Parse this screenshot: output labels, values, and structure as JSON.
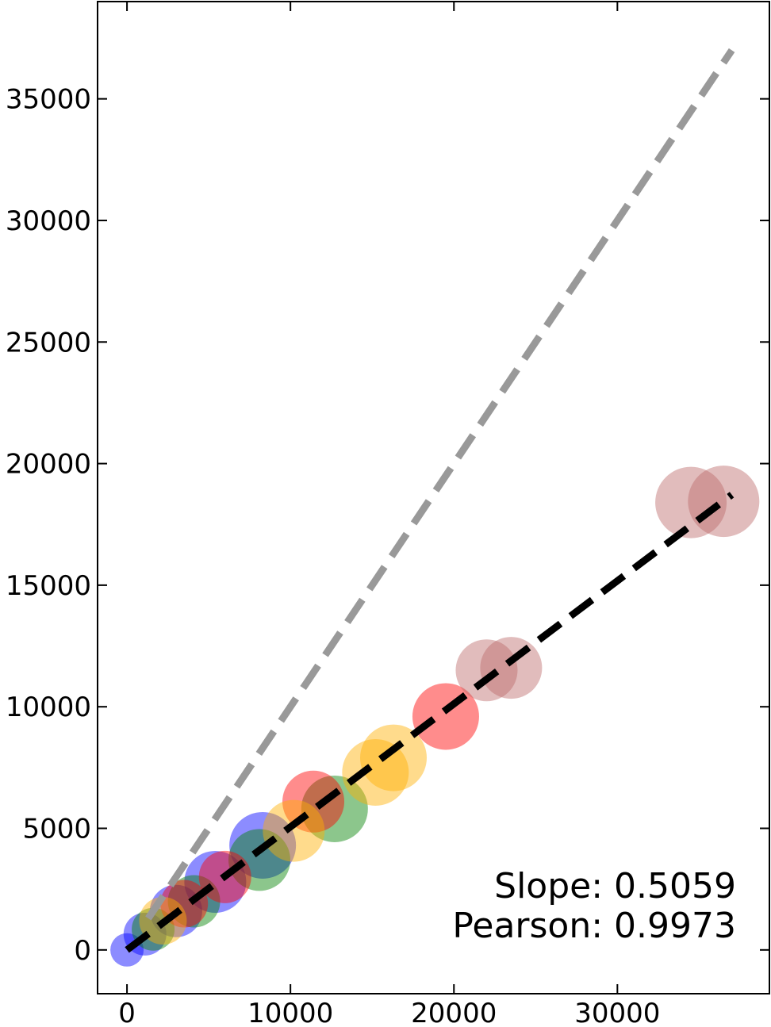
{
  "chart_data": {
    "type": "scatter",
    "title": "",
    "xlabel": "",
    "ylabel": "",
    "xlim": [
      -1800,
      39300
    ],
    "ylim": [
      -1800,
      39000
    ],
    "x_ticks": [
      0,
      10000,
      20000,
      30000
    ],
    "y_ticks": [
      0,
      5000,
      10000,
      15000,
      20000,
      25000,
      30000,
      35000
    ],
    "grid": false,
    "annotations": [
      "Slope: 0.5059",
      "Pearson: 0.9973"
    ],
    "reference_lines": [
      {
        "kind": "identity",
        "style": "dashed",
        "color": "#999999",
        "x": [
          1300,
          37000
        ],
        "y": [
          1300,
          37000
        ]
      },
      {
        "kind": "fit",
        "style": "dashed",
        "color": "#000000",
        "x": [
          0,
          37000
        ],
        "y": [
          0,
          18720
        ]
      }
    ],
    "series": [
      {
        "color": "#0000ff",
        "points": [
          {
            "x": 0,
            "y": 0,
            "size": 0.3
          },
          {
            "x": 1100,
            "y": 650,
            "size": 0.5
          },
          {
            "x": 3000,
            "y": 1600,
            "size": 0.7
          },
          {
            "x": 5400,
            "y": 2800,
            "size": 0.9
          },
          {
            "x": 8300,
            "y": 4300,
            "size": 1.0
          }
        ]
      },
      {
        "color": "#008000",
        "points": [
          {
            "x": 1600,
            "y": 850,
            "size": 0.5
          },
          {
            "x": 4100,
            "y": 2000,
            "size": 0.7
          },
          {
            "x": 8100,
            "y": 3700,
            "size": 0.9
          },
          {
            "x": 12700,
            "y": 5800,
            "size": 1.0
          }
        ]
      },
      {
        "color": "#ff0000",
        "points": [
          {
            "x": 3500,
            "y": 1900,
            "size": 0.6
          },
          {
            "x": 6000,
            "y": 3000,
            "size": 0.7
          },
          {
            "x": 11400,
            "y": 6100,
            "size": 0.9
          },
          {
            "x": 19500,
            "y": 9600,
            "size": 1.0
          }
        ]
      },
      {
        "color": "#ffb000",
        "points": [
          {
            "x": 2200,
            "y": 1200,
            "size": 0.6
          },
          {
            "x": 10200,
            "y": 4900,
            "size": 0.9
          },
          {
            "x": 15200,
            "y": 7300,
            "size": 1.0
          },
          {
            "x": 16300,
            "y": 7900,
            "size": 1.0
          }
        ]
      },
      {
        "color": "#bc6b6b",
        "points": [
          {
            "x": 22000,
            "y": 11500,
            "size": 0.9
          },
          {
            "x": 23500,
            "y": 11600,
            "size": 0.9
          },
          {
            "x": 34500,
            "y": 18400,
            "size": 1.1
          },
          {
            "x": 36500,
            "y": 18450,
            "size": 1.1
          }
        ]
      }
    ]
  }
}
